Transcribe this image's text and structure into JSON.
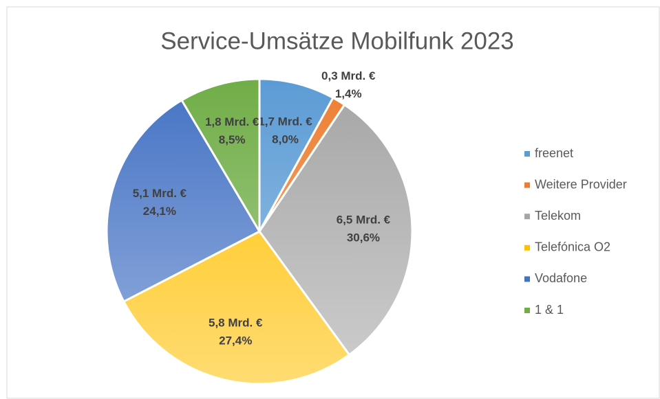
{
  "chart_data": {
    "type": "pie",
    "title": "Service-Umsätze Mobilfunk 2023",
    "categories": [
      "freenet",
      "Weitere Provider",
      "Telekom",
      "Telefónica O2",
      "Vodafone",
      "1 & 1"
    ],
    "values": [
      8.0,
      1.4,
      30.6,
      27.4,
      24.1,
      8.5
    ],
    "value_labels": [
      "8,0%",
      "1,4%",
      "30,6%",
      "27,4%",
      "24,1%",
      "8,5%"
    ],
    "amount_labels": [
      "1,7 Mrd. €",
      "0,3 Mrd. €",
      "6,5 Mrd. €",
      "5,8 Mrd. €",
      "5,1 Mrd. €",
      "1,8 Mrd. €"
    ],
    "colors": [
      "#5b9bd5",
      "#ed7d31",
      "#a5a5a5",
      "#ffc000",
      "#4472c4",
      "#70ad47"
    ],
    "legend": "right"
  }
}
